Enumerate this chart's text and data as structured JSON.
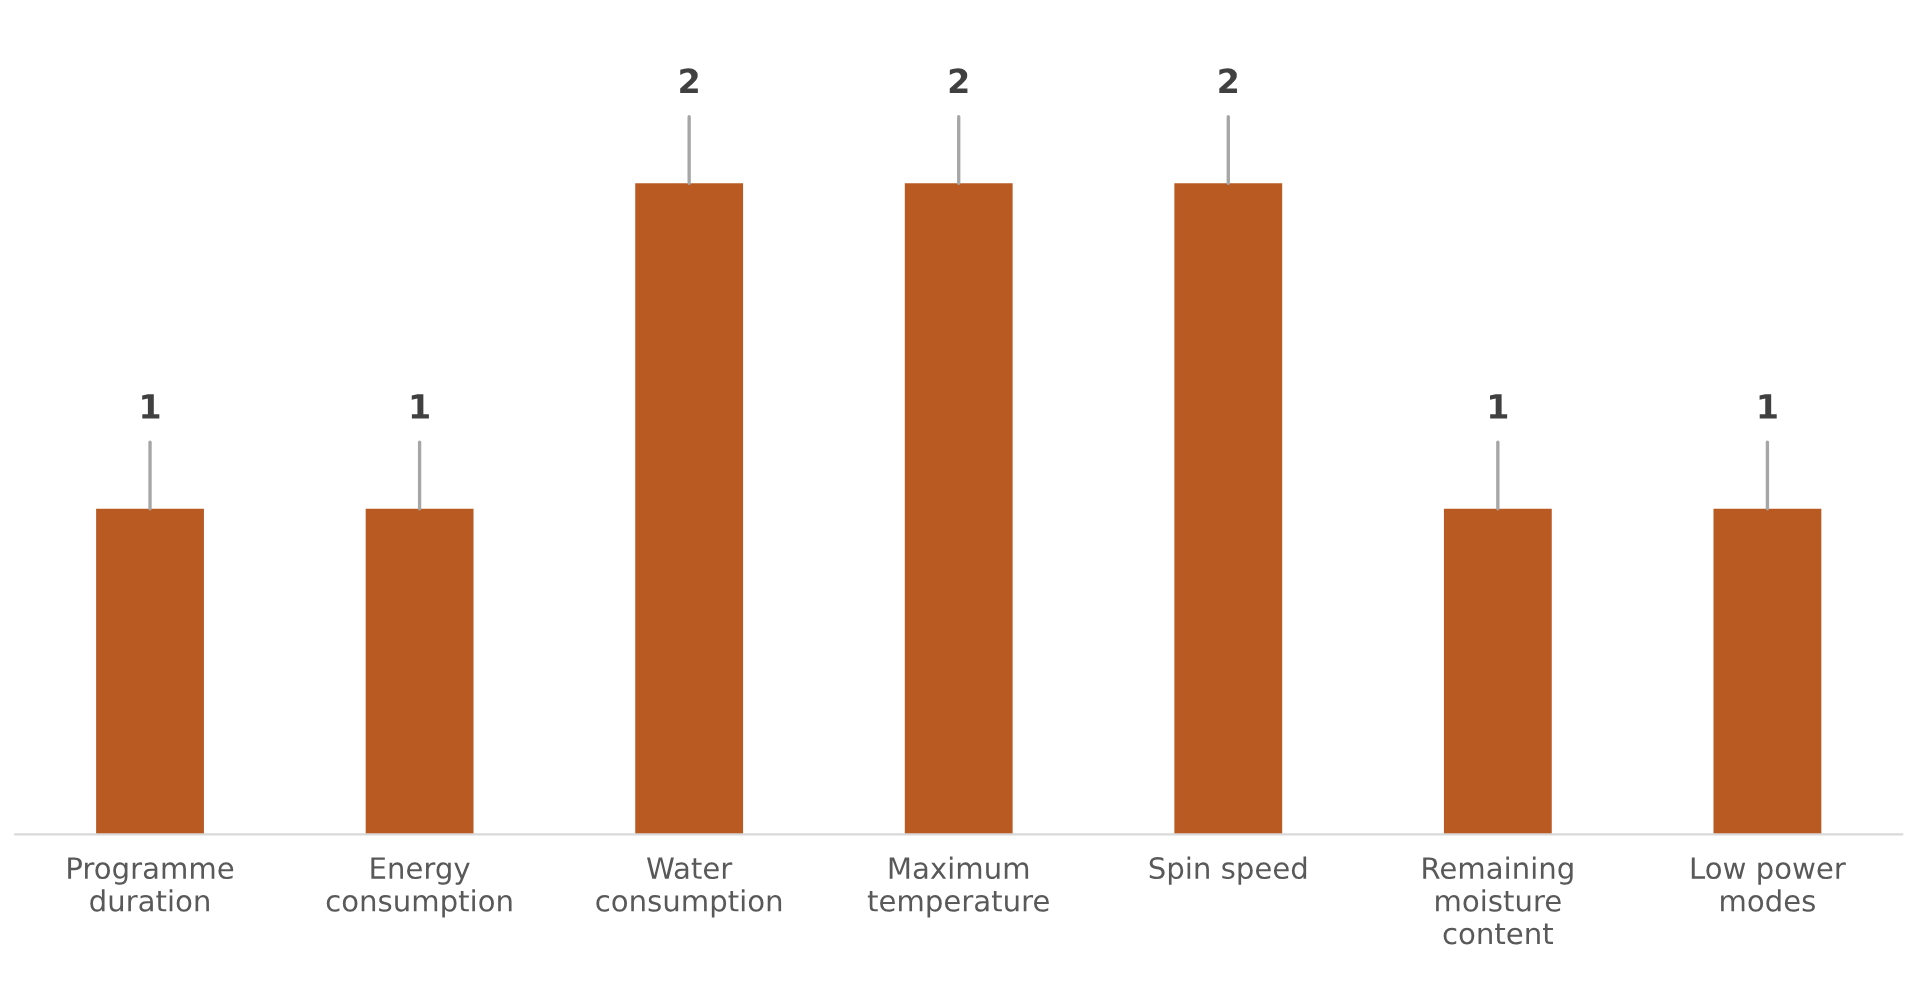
{
  "chart_data": {
    "type": "bar",
    "categories": [
      "Programme\nduration",
      "Energy\nconsumption",
      "Water\nconsumption",
      "Maximum\ntemperature",
      "Spin speed",
      "Remaining\nmoisture\ncontent",
      "Low power\nmodes"
    ],
    "values": [
      1,
      1,
      2,
      2,
      2,
      1,
      1
    ],
    "color": "#b85a22",
    "data_labels": true,
    "grid": false,
    "legend": false
  }
}
